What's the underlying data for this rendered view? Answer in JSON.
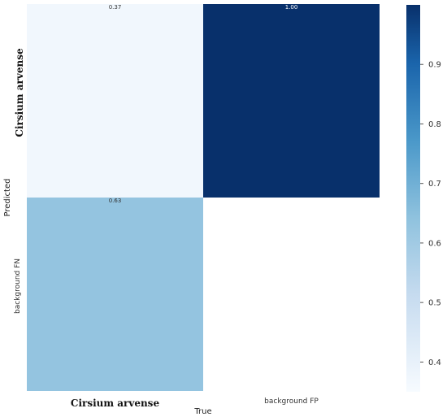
{
  "chart_data": {
    "type": "heatmap",
    "title": "",
    "xlabel": "True",
    "ylabel": "Predicted",
    "x_categories": [
      "Cirsium arvense",
      "background FP"
    ],
    "y_categories": [
      "Cirsium arvense",
      "background FN"
    ],
    "cells": [
      {
        "row": 0,
        "col": 0,
        "value": 0.37,
        "label": "0.37"
      },
      {
        "row": 0,
        "col": 1,
        "value": 1.0,
        "label": "1.00"
      },
      {
        "row": 1,
        "col": 0,
        "value": 0.63,
        "label": "0.63"
      },
      {
        "row": 1,
        "col": 1,
        "value": null,
        "label": ""
      }
    ],
    "colormap": "Blues",
    "colorbar": {
      "range": [
        0.35,
        1.0
      ],
      "ticks": [
        0.4,
        0.5,
        0.6,
        0.7,
        0.8,
        0.9
      ],
      "tick_labels": [
        "0.4",
        "0.5",
        "0.6",
        "0.7",
        "0.8",
        "0.9"
      ]
    }
  }
}
